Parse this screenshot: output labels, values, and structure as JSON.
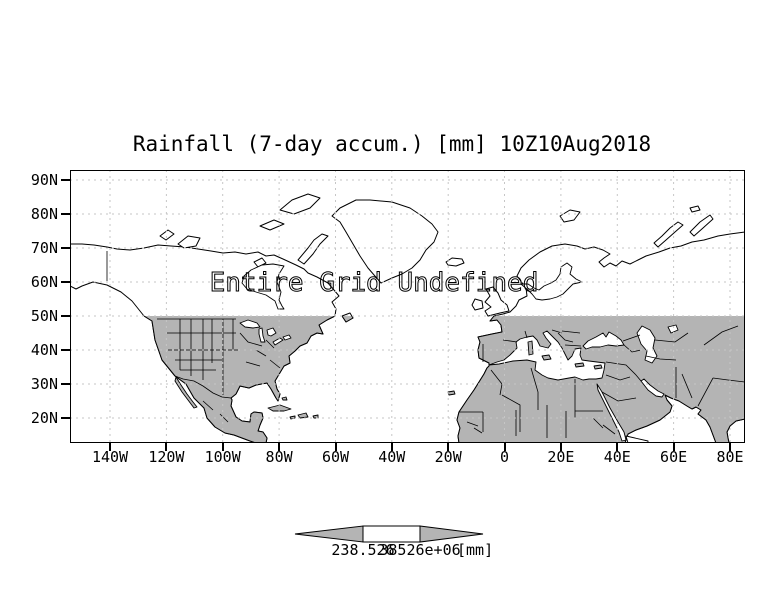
{
  "title": "Rainfall (7-day accum.) [mm] 10Z10Aug2018",
  "overlay_message": "Entire Grid Undefined",
  "axes": {
    "lat_labels": [
      "90N",
      "80N",
      "70N",
      "60N",
      "50N",
      "40N",
      "30N",
      "20N"
    ],
    "lon_labels": [
      "140W",
      "120W",
      "100W",
      "80W",
      "60W",
      "40W",
      "20W",
      "0",
      "20E",
      "40E",
      "60E",
      "80E"
    ]
  },
  "colorbar": {
    "min_label": "238.526",
    "max_label": "38526e+06",
    "unit_label": "[mm]"
  },
  "colors": {
    "background": "#ffffff",
    "shaded_land": "#b4b4b4",
    "gridline": "#c6c6c6",
    "line": "#000000"
  },
  "chart_data": {
    "type": "map",
    "title": "Rainfall (7-day accum.) [mm] 10Z10Aug2018",
    "variable": "Rainfall (7-day accum.)",
    "units": "mm",
    "valid_time": "10Z10Aug2018",
    "projection": "latlon",
    "lat_ticks": [
      "90N",
      "80N",
      "70N",
      "60N",
      "50N",
      "40N",
      "30N",
      "20N"
    ],
    "lon_ticks": [
      "140W",
      "120W",
      "100W",
      "80W",
      "60W",
      "40W",
      "20W",
      "0",
      "20E",
      "40E",
      "60E",
      "80E"
    ],
    "gridlines": "dotted gray every 10 deg lat / 20 deg lon",
    "status_annotation": "Entire Grid Undefined",
    "shading": "land areas south of 50N filled gray; no data values plotted",
    "colorbar": {
      "shape": "double-arrow",
      "labels": [
        "238.526",
        "38526e+06"
      ],
      "unit": "[mm]"
    }
  }
}
